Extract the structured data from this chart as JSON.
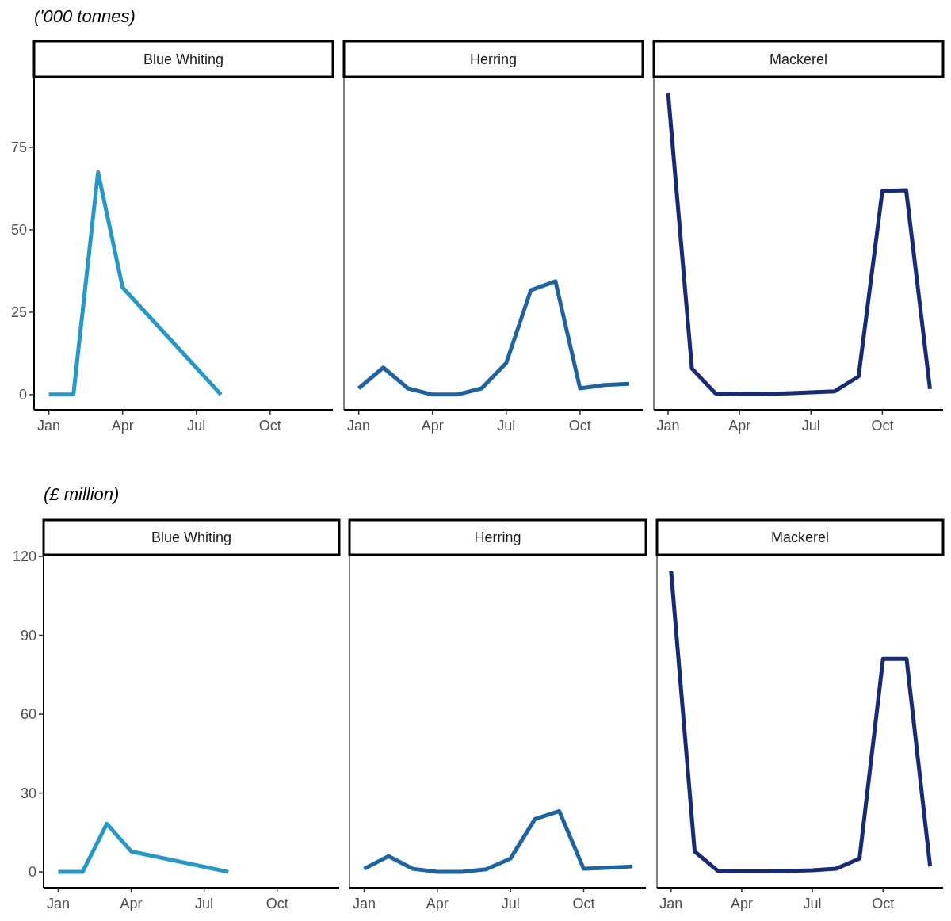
{
  "chart_data": [
    {
      "type": "line",
      "ylabel": "('000 tonnes)",
      "title": "Blue Whiting",
      "categories": [
        "Jan",
        null,
        null,
        "Apr",
        null,
        null,
        "Jul",
        null,
        null,
        "Oct",
        null,
        null
      ],
      "ylim": [
        -4.6,
        96.4
      ],
      "yticks": [
        0,
        25,
        50,
        75
      ],
      "grid": false,
      "series": [
        {
          "color": "#2399c9",
          "values": [
            0,
            0,
            67.5,
            32.5,
            null,
            null,
            null,
            0,
            null,
            null,
            null,
            null
          ]
        }
      ]
    },
    {
      "type": "line",
      "title": "Herring",
      "categories": [
        "Jan",
        null,
        null,
        "Apr",
        null,
        null,
        "Jul",
        null,
        null,
        "Oct",
        null,
        null
      ],
      "ylim": [
        -4.6,
        96.4
      ],
      "tick_labels": "x",
      "grid": false,
      "series": [
        {
          "color": "#1c64a3",
          "values": [
            1.9,
            8.2,
            1.9,
            0,
            0,
            1.9,
            9.6,
            31.7,
            34.4,
            1.9,
            2.9,
            3.3
          ]
        }
      ]
    },
    {
      "type": "line",
      "title": "Mackerel",
      "categories": [
        "Jan",
        null,
        null,
        "Apr",
        null,
        null,
        "Jul",
        null,
        null,
        "Oct",
        null,
        null
      ],
      "ylim": [
        -4.6,
        96.4
      ],
      "tick_labels": "x",
      "grid": false,
      "series": [
        {
          "color": "#162a78",
          "values": [
            91.6,
            7.9,
            0.3,
            0.2,
            0.2,
            0.4,
            0.7,
            1,
            5.5,
            61.8,
            62,
            1.7
          ]
        }
      ]
    },
    {
      "type": "line",
      "ylabel": "(£ million)",
      "title": "Blue Whiting",
      "categories": [
        "Jan",
        null,
        null,
        "Apr",
        null,
        null,
        "Jul",
        null,
        null,
        "Oct",
        null,
        null
      ],
      "ylim": [
        -6,
        120.6
      ],
      "yticks": [
        0,
        30,
        60,
        90,
        120
      ],
      "grid": false,
      "series": [
        {
          "color": "#2399c9",
          "values": [
            0,
            0,
            18.3,
            7.8,
            null,
            null,
            null,
            0,
            null,
            null,
            null,
            null
          ]
        }
      ]
    },
    {
      "type": "line",
      "title": "Herring",
      "categories": [
        "Jan",
        null,
        null,
        "Apr",
        null,
        null,
        "Jul",
        null,
        null,
        "Oct",
        null,
        null
      ],
      "ylim": [
        -6,
        120.6
      ],
      "tick_labels": "x",
      "grid": false,
      "series": [
        {
          "color": "#1c64a3",
          "values": [
            1.2,
            6,
            1.2,
            0,
            0,
            1,
            5.1,
            20.1,
            23.1,
            1.2,
            1.6,
            2.1
          ]
        }
      ]
    },
    {
      "type": "line",
      "title": "Mackerel",
      "categories": [
        "Jan",
        null,
        null,
        "Apr",
        null,
        null,
        "Jul",
        null,
        null,
        "Oct",
        null,
        null
      ],
      "ylim": [
        -6,
        120.6
      ],
      "tick_labels": "x",
      "grid": false,
      "series": [
        {
          "color": "#162a78",
          "values": [
            114.3,
            7.8,
            0.3,
            0.2,
            0.2,
            0.4,
            0.6,
            1.2,
            5.1,
            81,
            81,
            2.1
          ]
        }
      ]
    }
  ]
}
